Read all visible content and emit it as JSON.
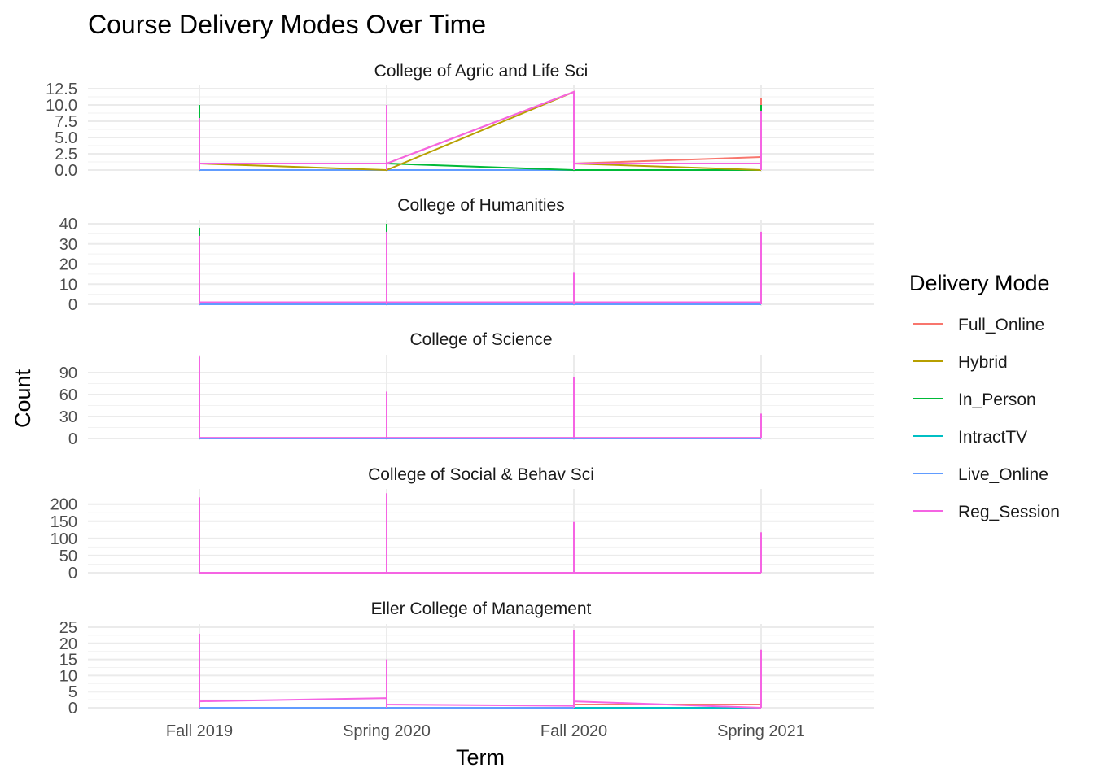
{
  "chart_data": {
    "type": "line",
    "title": "Course Delivery Modes Over Time",
    "xlabel": "Term",
    "ylabel": "Count",
    "x_categories": [
      "Fall 2019",
      "Spring 2020",
      "Fall 2020",
      "Spring 2021"
    ],
    "grid": true,
    "legend": {
      "title": "Delivery Mode",
      "position": "right",
      "entries": [
        {
          "name": "Full_Online",
          "color": "#F8766D"
        },
        {
          "name": "Hybrid",
          "color": "#B79F00"
        },
        {
          "name": "In_Person",
          "color": "#00BA38"
        },
        {
          "name": "IntractTV",
          "color": "#00BFC4"
        },
        {
          "name": "Live_Online",
          "color": "#619CFF"
        },
        {
          "name": "Reg_Session",
          "color": "#F564E3"
        }
      ]
    },
    "panels": [
      {
        "title": "College of Agric and Life Sci",
        "ylim": [
          0,
          12.5
        ],
        "ticks": [
          0,
          2.5,
          5,
          7.5,
          10,
          12.5
        ],
        "tick_labels": [
          "0.0",
          "2.5",
          "5.0",
          "7.5",
          "10.0",
          "12.5"
        ],
        "spikes": [
          {
            "series": "In_Person",
            "x": "Fall 2019",
            "value": 10
          },
          {
            "series": "Reg_Session",
            "x": "Fall 2019",
            "value": 8
          },
          {
            "series": "Reg_Session",
            "x": "Spring 2020",
            "value": 10
          },
          {
            "series": "Reg_Session",
            "x": "Fall 2020",
            "value": 12
          },
          {
            "series": "Full_Online",
            "x": "Spring 2021",
            "value": 11
          },
          {
            "series": "In_Person",
            "x": "Spring 2021",
            "value": 10
          },
          {
            "series": "Reg_Session",
            "x": "Spring 2021",
            "value": 9
          }
        ],
        "series": [
          {
            "name": "Live_Online",
            "points": [
              [
                0,
                0
              ],
              [
                1,
                0
              ],
              [
                2,
                0
              ],
              [
                3,
                0
              ]
            ]
          },
          {
            "name": "In_Person",
            "points": [
              [
                0,
                1
              ],
              [
                1,
                1
              ],
              [
                2,
                0
              ],
              [
                3,
                0
              ]
            ]
          },
          {
            "name": "Hybrid",
            "points": [
              [
                0,
                1
              ],
              [
                1,
                0
              ],
              [
                2,
                12
              ],
              [
                2,
                1
              ],
              [
                3,
                0
              ]
            ]
          },
          {
            "name": "Full_Online",
            "points": [
              [
                0,
                1
              ],
              [
                1,
                1
              ],
              [
                2,
                12
              ],
              [
                2,
                1
              ],
              [
                3,
                2
              ]
            ]
          },
          {
            "name": "Reg_Session",
            "points": [
              [
                0,
                1
              ],
              [
                1,
                1
              ],
              [
                2,
                12
              ],
              [
                2,
                1
              ],
              [
                3,
                1
              ]
            ]
          }
        ]
      },
      {
        "title": "College of Humanities",
        "ylim": [
          0,
          40
        ],
        "ticks": [
          0,
          10,
          20,
          30,
          40
        ],
        "tick_labels": [
          "0",
          "10",
          "20",
          "30",
          "40"
        ],
        "spikes": [
          {
            "series": "In_Person",
            "x": "Fall 2019",
            "value": 38
          },
          {
            "series": "Reg_Session",
            "x": "Fall 2019",
            "value": 34
          },
          {
            "series": "In_Person",
            "x": "Spring 2020",
            "value": 40
          },
          {
            "series": "Reg_Session",
            "x": "Spring 2020",
            "value": 36
          },
          {
            "series": "Reg_Session",
            "x": "Fall 2020",
            "value": 16
          },
          {
            "series": "Reg_Session",
            "x": "Spring 2021",
            "value": 36
          }
        ],
        "series": [
          {
            "name": "Live_Online",
            "points": [
              [
                0,
                0
              ],
              [
                1,
                0
              ],
              [
                2,
                0
              ],
              [
                3,
                0
              ]
            ]
          },
          {
            "name": "Reg_Session",
            "points": [
              [
                0,
                1
              ],
              [
                1,
                1
              ],
              [
                2,
                1
              ],
              [
                3,
                1
              ]
            ]
          }
        ]
      },
      {
        "title": "College of Science",
        "ylim": [
          0,
          110
        ],
        "ticks": [
          0,
          30,
          60,
          90
        ],
        "tick_labels": [
          "0",
          "30",
          "60",
          "90"
        ],
        "spikes": [
          {
            "series": "Reg_Session",
            "x": "Fall 2019",
            "value": 112
          },
          {
            "series": "Reg_Session",
            "x": "Spring 2020",
            "value": 64
          },
          {
            "series": "Reg_Session",
            "x": "Fall 2020",
            "value": 84
          },
          {
            "series": "Reg_Session",
            "x": "Spring 2021",
            "value": 34
          }
        ],
        "series": [
          {
            "name": "Live_Online",
            "points": [
              [
                0,
                0
              ],
              [
                1,
                0
              ],
              [
                2,
                0
              ],
              [
                3,
                0
              ]
            ]
          },
          {
            "name": "Reg_Session",
            "points": [
              [
                0,
                1
              ],
              [
                1,
                1
              ],
              [
                2,
                1
              ],
              [
                3,
                1
              ]
            ]
          }
        ]
      },
      {
        "title": "College of Social & Behav Sci",
        "ylim": [
          0,
          235
        ],
        "ticks": [
          0,
          50,
          100,
          150,
          200
        ],
        "tick_labels": [
          "0",
          "50",
          "100",
          "150",
          "200"
        ],
        "spikes": [
          {
            "series": "Reg_Session",
            "x": "Fall 2019",
            "value": 220
          },
          {
            "series": "Reg_Session",
            "x": "Spring 2020",
            "value": 232
          },
          {
            "series": "Reg_Session",
            "x": "Fall 2020",
            "value": 148
          },
          {
            "series": "Reg_Session",
            "x": "Spring 2021",
            "value": 118
          }
        ],
        "series": [
          {
            "name": "Reg_Session",
            "points": [
              [
                0,
                0
              ],
              [
                1,
                0
              ],
              [
                2,
                0
              ],
              [
                3,
                0
              ]
            ]
          }
        ]
      },
      {
        "title": "Eller College of Management",
        "ylim": [
          0,
          25
        ],
        "ticks": [
          0,
          5,
          10,
          15,
          20,
          25
        ],
        "tick_labels": [
          "0",
          "5",
          "10",
          "15",
          "20",
          "25"
        ],
        "spikes": [
          {
            "series": "Reg_Session",
            "x": "Fall 2019",
            "value": 23
          },
          {
            "series": "Reg_Session",
            "x": "Spring 2020",
            "value": 15
          },
          {
            "series": "Reg_Session",
            "x": "Fall 2020",
            "value": 24
          },
          {
            "series": "Full_Online",
            "x": "Spring 2021",
            "value": 1
          },
          {
            "series": "Reg_Session",
            "x": "Spring 2021",
            "value": 18
          }
        ],
        "series": [
          {
            "name": "Live_Online",
            "points": [
              [
                0,
                0
              ],
              [
                1,
                0
              ],
              [
                2,
                0
              ],
              [
                3,
                0
              ]
            ]
          },
          {
            "name": "IntractTV",
            "points": [
              [
                2,
                0
              ],
              [
                3,
                0
              ]
            ]
          },
          {
            "name": "Full_Online",
            "points": [
              [
                2,
                1
              ],
              [
                3,
                1
              ]
            ]
          },
          {
            "name": "Reg_Session",
            "points": [
              [
                0,
                2
              ],
              [
                1,
                3
              ],
              [
                1,
                1
              ],
              [
                2,
                0.6
              ],
              [
                2,
                2
              ],
              [
                3,
                0
              ]
            ]
          }
        ]
      }
    ]
  }
}
